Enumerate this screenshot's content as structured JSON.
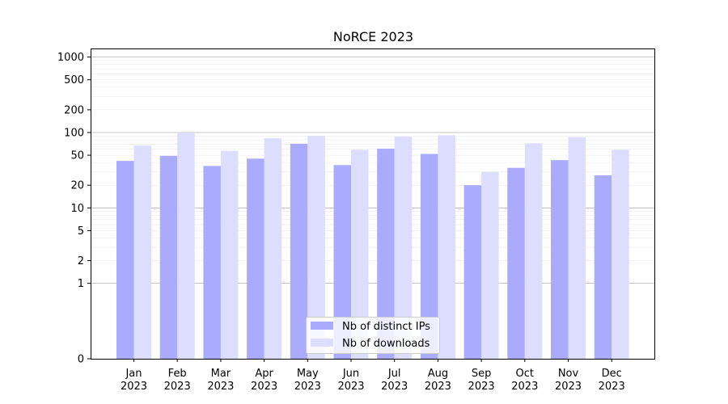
{
  "chart_data": {
    "type": "bar",
    "title": "NoRCE 2023",
    "xlabel": "",
    "ylabel": "",
    "y_scale": "symlog",
    "ylim": [
      0,
      1300
    ],
    "y_ticks": [
      0,
      1,
      2,
      5,
      10,
      20,
      50,
      100,
      200,
      500,
      1000
    ],
    "grid": "horizontal",
    "legend_position": "bottom-center",
    "categories": [
      [
        "Jan",
        "2023"
      ],
      [
        "Feb",
        "2023"
      ],
      [
        "Mar",
        "2023"
      ],
      [
        "Apr",
        "2023"
      ],
      [
        "May",
        "2023"
      ],
      [
        "Jun",
        "2023"
      ],
      [
        "Jul",
        "2023"
      ],
      [
        "Aug",
        "2023"
      ],
      [
        "Sep",
        "2023"
      ],
      [
        "Oct",
        "2023"
      ],
      [
        "Nov",
        "2023"
      ],
      [
        "Dec",
        "2023"
      ]
    ],
    "series": [
      {
        "name": "Nb of distinct IPs",
        "color": "#aaaaff",
        "values": [
          42,
          49,
          36,
          45,
          71,
          37,
          61,
          52,
          20,
          34,
          43,
          27
        ]
      },
      {
        "name": "Nb of downloads",
        "color": "#ddddff",
        "values": [
          67,
          100,
          57,
          84,
          90,
          59,
          88,
          92,
          30,
          72,
          87,
          59
        ]
      }
    ]
  }
}
